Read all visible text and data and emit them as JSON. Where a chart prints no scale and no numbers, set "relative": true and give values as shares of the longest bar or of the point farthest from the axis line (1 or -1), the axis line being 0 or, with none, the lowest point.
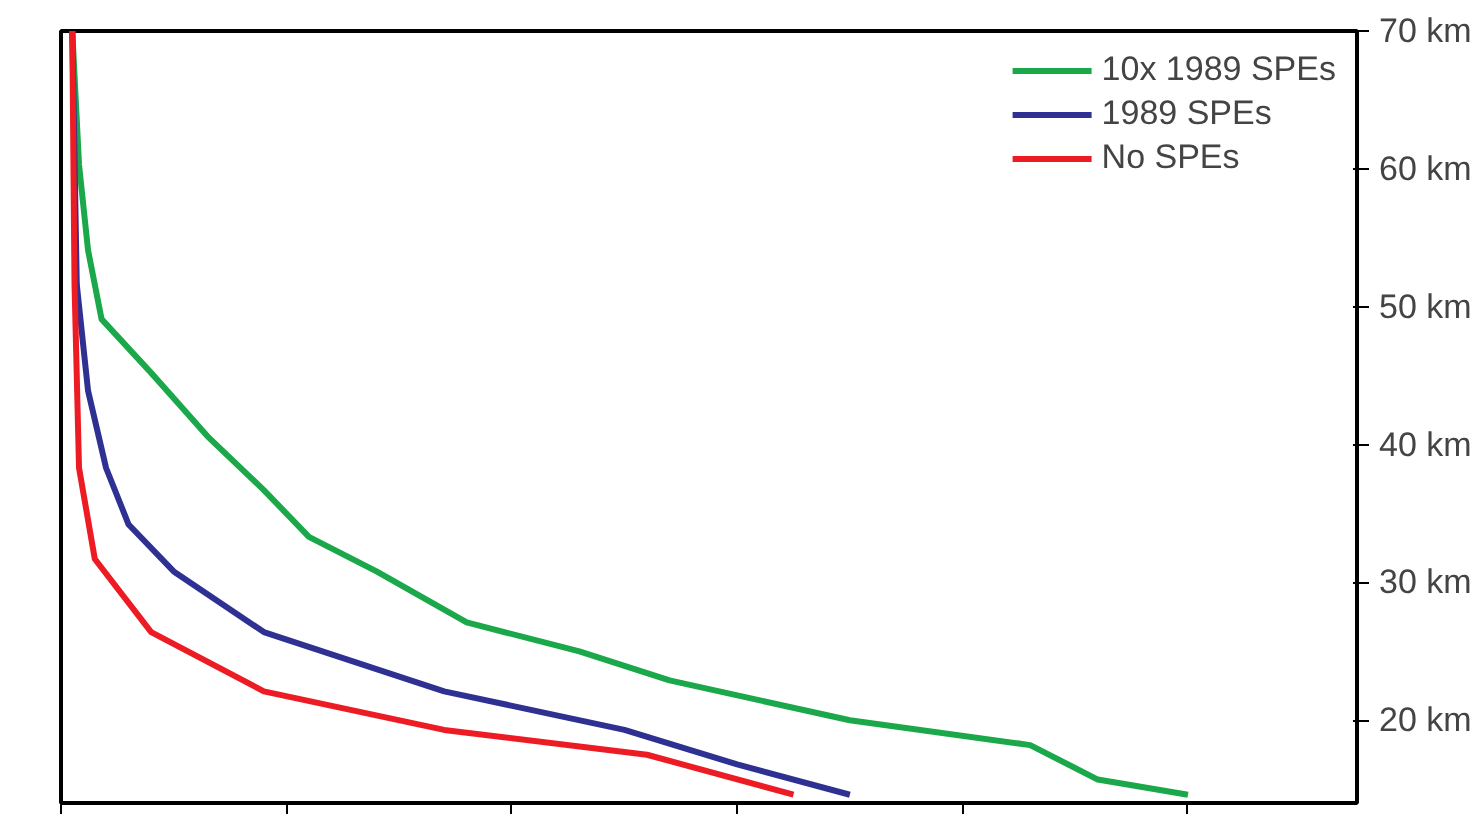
{
  "chart_data": {
    "type": "line",
    "relative": true,
    "orientation": "horizontal",
    "series": [
      {
        "name": "10x 1989 SPEs",
        "color": "#1aa84a",
        "values": [
          0.01,
          0.016,
          0.024,
          0.036,
          0.08,
          0.13,
          0.18,
          0.22,
          0.28,
          0.36,
          0.46,
          0.54,
          0.7,
          0.86,
          0.92,
          1.0
        ],
        "x": [
          70,
          60.3,
          54.1,
          49.1,
          45.2,
          40.6,
          36.7,
          33.3,
          30.8,
          27.1,
          25.0,
          22.9,
          20,
          18.2,
          15.7,
          14.6
        ]
      },
      {
        "name": "1989 SPEs",
        "color": "#2e3192",
        "values": [
          0.01,
          0.014,
          0.024,
          0.04,
          0.06,
          0.1,
          0.18,
          0.34,
          0.5,
          0.6,
          0.7
        ],
        "x": [
          70,
          51.6,
          43.9,
          38.3,
          34.2,
          30.8,
          26.4,
          22.1,
          19.3,
          16.8,
          14.6
        ]
      },
      {
        "name": "No SPEs",
        "color": "#ed1c24",
        "values": [
          0.01,
          0.012,
          0.016,
          0.03,
          0.08,
          0.18,
          0.34,
          0.52,
          0.65
        ],
        "x": [
          70,
          51.6,
          38.3,
          31.7,
          26.4,
          22.1,
          19.3,
          17.5,
          14.6
        ]
      }
    ],
    "ylim": [
      14,
      70
    ],
    "yticks": [
      {
        "value": 20,
        "label": "20 km"
      },
      {
        "value": 30,
        "label": "30 km"
      },
      {
        "value": 40,
        "label": "40 km"
      },
      {
        "value": 50,
        "label": "50 km"
      },
      {
        "value": 60,
        "label": "60 km"
      },
      {
        "value": 70,
        "label": "70 km"
      }
    ],
    "tick_labels": "y",
    "legend": "top right",
    "grid": false,
    "marker": "none",
    "line_style": "solid"
  }
}
